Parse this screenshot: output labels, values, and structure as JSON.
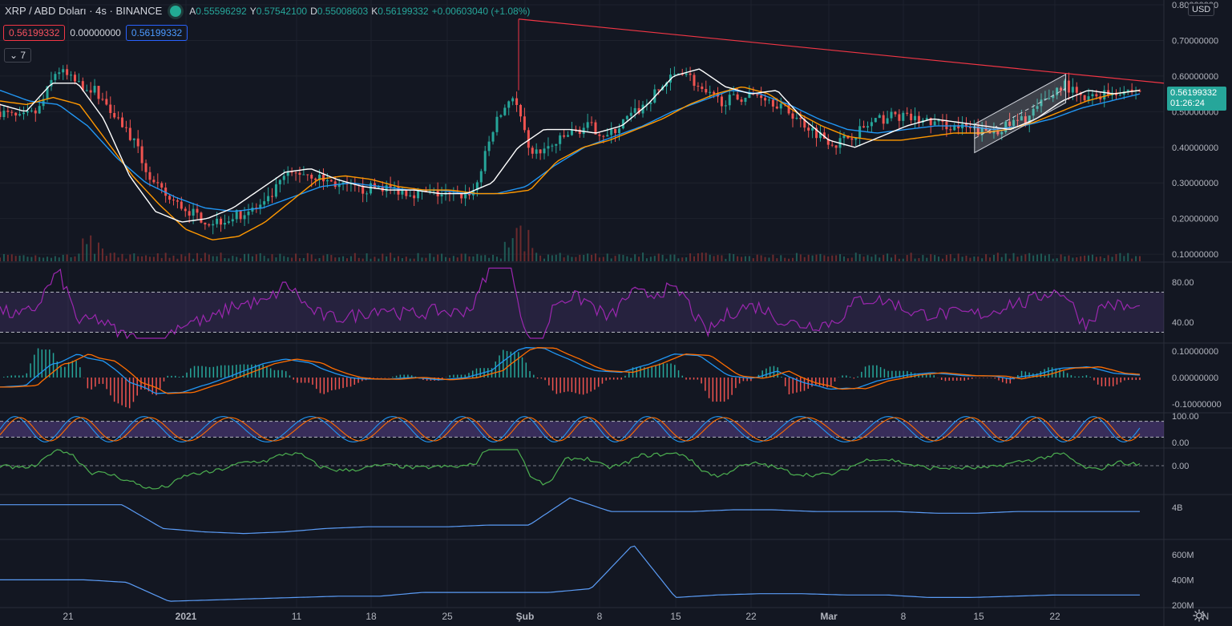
{
  "header": {
    "symbol": "XRP / ABD Doları · 4s · BINANCE",
    "ohlc": [
      {
        "k": "A",
        "v": "0.55596292"
      },
      {
        "k": "Y",
        "v": "0.57542100"
      },
      {
        "k": "D",
        "v": "0.55008603"
      },
      {
        "k": "K",
        "v": "0.56199332"
      },
      {
        "k": "",
        "v": "+0.00603040 (+1.08%)"
      }
    ]
  },
  "indicator_values": {
    "red": "0.56199332",
    "plain": "0.00000000",
    "blue": "0.56199332"
  },
  "collapsed_count": "7",
  "currency": "USD",
  "last_price": {
    "price": "0.56199332",
    "countdown": "01:26:24"
  },
  "axis": {
    "price_ticks": [
      {
        "label": "0.80000000",
        "value": 0.8
      },
      {
        "label": "0.70000000",
        "value": 0.7
      },
      {
        "label": "0.60000000",
        "value": 0.6
      },
      {
        "label": "0.50000000",
        "value": 0.5
      },
      {
        "label": "0.40000000",
        "value": 0.4
      },
      {
        "label": "0.30000000",
        "value": 0.3
      },
      {
        "label": "0.20000000",
        "value": 0.2
      },
      {
        "label": "0.10000000",
        "value": 0.1
      }
    ],
    "rsi_ticks": [
      {
        "label": "80.00",
        "value": 80
      },
      {
        "label": "40.00",
        "value": 40
      }
    ],
    "macd_ticks": [
      {
        "label": "0.10000000",
        "value": 0.1
      },
      {
        "label": "0.00000000",
        "value": 0
      },
      {
        "label": "-0.10000000",
        "value": -0.1
      }
    ],
    "stoch_ticks": [
      {
        "label": "100.00",
        "value": 100
      },
      {
        "label": "0.00",
        "value": 0
      }
    ],
    "osc_ticks": [
      {
        "label": "0.00",
        "value": 0
      }
    ],
    "obv_ticks": [
      {
        "label": "4B",
        "value": 4
      }
    ],
    "vol_ticks": [
      {
        "label": "600M",
        "value": 600
      },
      {
        "label": "400M",
        "value": 400
      },
      {
        "label": "200M",
        "value": 200
      }
    ],
    "time_labels": [
      {
        "label": "21",
        "bold": false
      },
      {
        "label": "2021",
        "bold": true
      },
      {
        "label": "11",
        "bold": false
      },
      {
        "label": "18",
        "bold": false
      },
      {
        "label": "25",
        "bold": false
      },
      {
        "label": "Şub",
        "bold": true
      },
      {
        "label": "8",
        "bold": false
      },
      {
        "label": "15",
        "bold": false
      },
      {
        "label": "22",
        "bold": false
      },
      {
        "label": "Mar",
        "bold": true
      },
      {
        "label": "8",
        "bold": false
      },
      {
        "label": "15",
        "bold": false
      },
      {
        "label": "22",
        "bold": false
      },
      {
        "label": "N",
        "bold": false
      }
    ]
  },
  "chart_data": {
    "type": "line",
    "price_range": [
      0.08,
      0.8
    ],
    "price_anchors": [
      0.5,
      0.48,
      0.5,
      0.62,
      0.58,
      0.56,
      0.5,
      0.42,
      0.3,
      0.25,
      0.22,
      0.19,
      0.2,
      0.22,
      0.24,
      0.32,
      0.33,
      0.31,
      0.29,
      0.28,
      0.29,
      0.28,
      0.27,
      0.27,
      0.26,
      0.28,
      0.46,
      0.55,
      0.38,
      0.4,
      0.44,
      0.46,
      0.43,
      0.48,
      0.52,
      0.58,
      0.62,
      0.55,
      0.53,
      0.54,
      0.55,
      0.52,
      0.48,
      0.44,
      0.41,
      0.44,
      0.47,
      0.49,
      0.48,
      0.47,
      0.46,
      0.45,
      0.44,
      0.46,
      0.48,
      0.53,
      0.58,
      0.53,
      0.55,
      0.56,
      0.56
    ],
    "ma_orange_anchors": [
      0.53,
      0.52,
      0.54,
      0.52,
      0.42,
      0.32,
      0.24,
      0.17,
      0.14,
      0.15,
      0.19,
      0.25,
      0.31,
      0.32,
      0.31,
      0.29,
      0.28,
      0.28,
      0.27,
      0.27,
      0.28,
      0.36,
      0.4,
      0.42,
      0.45,
      0.48,
      0.52,
      0.55,
      0.57,
      0.55,
      0.5,
      0.46,
      0.43,
      0.42,
      0.42,
      0.43,
      0.44,
      0.44,
      0.45,
      0.47,
      0.5,
      0.53,
      0.55,
      0.56
    ],
    "ma_blue_anchors": [
      0.56,
      0.53,
      0.52,
      0.46,
      0.37,
      0.3,
      0.26,
      0.23,
      0.22,
      0.23,
      0.26,
      0.29,
      0.3,
      0.29,
      0.28,
      0.28,
      0.27,
      0.27,
      0.29,
      0.35,
      0.4,
      0.43,
      0.46,
      0.5,
      0.53,
      0.56,
      0.55,
      0.52,
      0.48,
      0.45,
      0.44,
      0.45,
      0.46,
      0.46,
      0.45,
      0.46,
      0.48,
      0.51,
      0.53,
      0.55
    ],
    "ma_white_anchors": [
      0.52,
      0.5,
      0.58,
      0.58,
      0.48,
      0.32,
      0.22,
      0.19,
      0.2,
      0.23,
      0.28,
      0.33,
      0.34,
      0.31,
      0.29,
      0.28,
      0.28,
      0.27,
      0.27,
      0.3,
      0.4,
      0.45,
      0.45,
      0.44,
      0.46,
      0.52,
      0.6,
      0.62,
      0.57,
      0.55,
      0.56,
      0.48,
      0.42,
      0.4,
      0.43,
      0.46,
      0.48,
      0.47,
      0.46,
      0.45,
      0.48,
      0.53,
      0.56,
      0.55,
      0.56
    ],
    "rsi_range": [
      20,
      100
    ],
    "rsi_bands": [
      70,
      30
    ],
    "macd_range": [
      -0.13,
      0.13
    ],
    "stoch_range": [
      0,
      100
    ],
    "stoch_bands": [
      80,
      20
    ],
    "obv_anchors": [
      5.0,
      5.0,
      5.0,
      5.0,
      3.6,
      3.4,
      3.3,
      3.4,
      3.6,
      3.7,
      3.7,
      3.7,
      3.8,
      3.8,
      5.4,
      4.6,
      4.6,
      4.6,
      4.7,
      4.7,
      4.6,
      4.6,
      4.6,
      4.5,
      4.5,
      4.6,
      4.6,
      4.6,
      4.6
    ],
    "vol_anchors": [
      400,
      400,
      400,
      380,
      230,
      240,
      250,
      260,
      270,
      270,
      300,
      300,
      300,
      300,
      330,
      680,
      260,
      280,
      290,
      290,
      280,
      280,
      260,
      260,
      270,
      280,
      280,
      280
    ],
    "trendline": {
      "from": {
        "t": 0.455,
        "p": 0.76
      },
      "to": {
        "t": 1.0,
        "p": 0.58
      }
    },
    "channel": {
      "t0": 0.855,
      "t1": 0.935,
      "low0": 0.385,
      "high0": 0.465,
      "low1": 0.525,
      "high1": 0.605
    }
  }
}
